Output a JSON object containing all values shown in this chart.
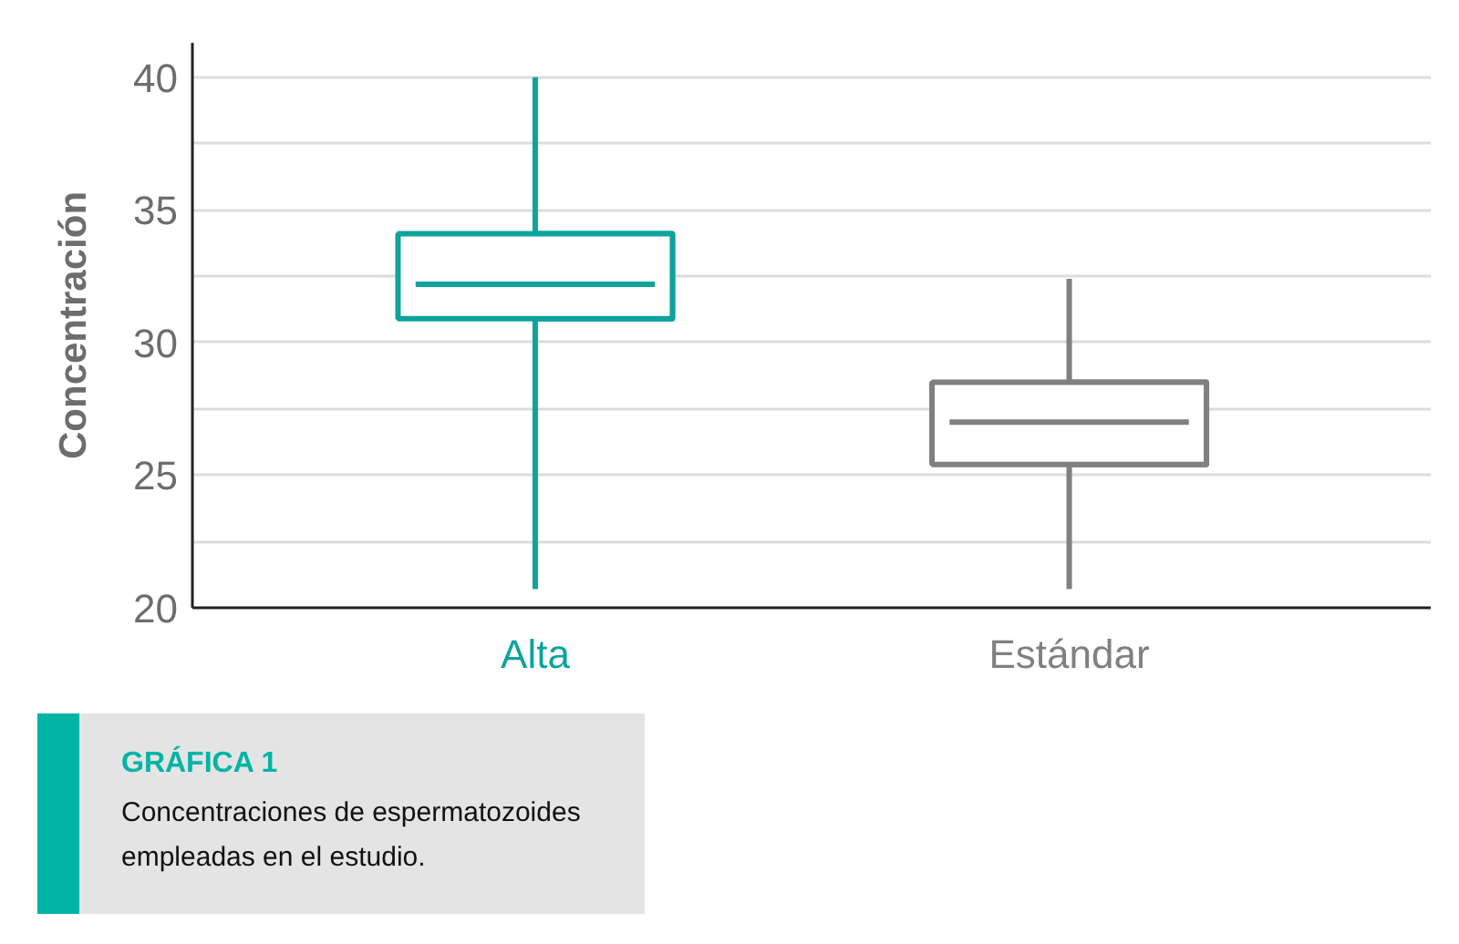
{
  "chart_data": {
    "type": "box",
    "title": "GRÁFICA 1",
    "subtitle": "Concentraciones de espermatozoides empleadas en el estudio.",
    "ylabel": "Concentración",
    "categories": [
      "Alta",
      "Estándar"
    ],
    "colors": [
      "#0ea39c",
      "#808080"
    ],
    "boxes": [
      {
        "low": 20.7,
        "q1": 30.9,
        "median": 32.2,
        "q3": 34.1,
        "high": 40
      },
      {
        "low": 20.7,
        "q1": 25.4,
        "median": 27,
        "q3": 28.5,
        "high": 32.4
      }
    ],
    "ylim": [
      20,
      41.3
    ],
    "yticks": [
      20,
      {
        "value": 22.5,
        "label": null
      },
      25,
      {
        "value": 27.5,
        "label": null
      },
      30,
      {
        "value": 32.5,
        "label": null
      },
      35,
      {
        "value": 37.5,
        "label": null
      },
      40
    ],
    "grid": "y"
  }
}
